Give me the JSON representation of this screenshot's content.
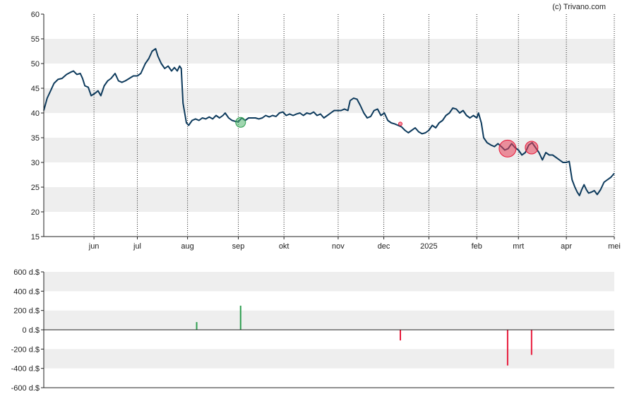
{
  "credit": "(c) Trivano.com",
  "colors": {
    "price_line": "#0d3a5c",
    "band": "#eeeeee",
    "buy": "#2e9e4f",
    "sell": "#e8193a",
    "buy_bubble": "rgba(80,180,110,0.55)",
    "sell_bubble": "rgba(232,64,88,0.55)"
  },
  "chart_data": [
    {
      "type": "line",
      "ylim": [
        15,
        60
      ],
      "y_ticks": [
        "15",
        "20",
        "25",
        "30",
        "35",
        "40",
        "45",
        "50",
        "55",
        "60"
      ],
      "x_ticks": [
        {
          "label": "jun",
          "t": 0.088
        },
        {
          "label": "jul",
          "t": 0.164
        },
        {
          "label": "aug",
          "t": 0.252
        },
        {
          "label": "sep",
          "t": 0.341
        },
        {
          "label": "okt",
          "t": 0.421
        },
        {
          "label": "nov",
          "t": 0.516
        },
        {
          "label": "dec",
          "t": 0.596
        },
        {
          "label": "2025",
          "t": 0.675
        },
        {
          "label": "feb",
          "t": 0.759
        },
        {
          "label": "mrt",
          "t": 0.832
        },
        {
          "label": "apr",
          "t": 0.916
        },
        {
          "label": "mei",
          "t": 1.0
        }
      ],
      "series": [
        {
          "points": [
            [
              0.0,
              40.5
            ],
            [
              0.006,
              43
            ],
            [
              0.012,
              44.5
            ],
            [
              0.018,
              46
            ],
            [
              0.025,
              46.8
            ],
            [
              0.032,
              47
            ],
            [
              0.04,
              47.8
            ],
            [
              0.048,
              48.3
            ],
            [
              0.052,
              48.5
            ],
            [
              0.058,
              47.8
            ],
            [
              0.064,
              48
            ],
            [
              0.068,
              47
            ],
            [
              0.072,
              45.5
            ],
            [
              0.078,
              45.2
            ],
            [
              0.083,
              43.5
            ],
            [
              0.09,
              44
            ],
            [
              0.095,
              44.5
            ],
            [
              0.1,
              43.5
            ],
            [
              0.106,
              45.5
            ],
            [
              0.112,
              46.5
            ],
            [
              0.118,
              47
            ],
            [
              0.125,
              48
            ],
            [
              0.131,
              46.5
            ],
            [
              0.137,
              46.2
            ],
            [
              0.143,
              46.5
            ],
            [
              0.15,
              47
            ],
            [
              0.157,
              47.5
            ],
            [
              0.164,
              47.5
            ],
            [
              0.17,
              48
            ],
            [
              0.178,
              50
            ],
            [
              0.184,
              51
            ],
            [
              0.19,
              52.5
            ],
            [
              0.196,
              53
            ],
            [
              0.2,
              51.5
            ],
            [
              0.206,
              50
            ],
            [
              0.212,
              49
            ],
            [
              0.218,
              49.5
            ],
            [
              0.224,
              48.5
            ],
            [
              0.229,
              49.2
            ],
            [
              0.234,
              48.5
            ],
            [
              0.238,
              49.5
            ],
            [
              0.241,
              49
            ],
            [
              0.244,
              42
            ],
            [
              0.25,
              38
            ],
            [
              0.254,
              37.5
            ],
            [
              0.26,
              38.5
            ],
            [
              0.266,
              38.8
            ],
            [
              0.272,
              38.5
            ],
            [
              0.278,
              39
            ],
            [
              0.284,
              38.8
            ],
            [
              0.29,
              39.2
            ],
            [
              0.296,
              38.8
            ],
            [
              0.302,
              39.5
            ],
            [
              0.308,
              39
            ],
            [
              0.314,
              39.5
            ],
            [
              0.318,
              40
            ],
            [
              0.324,
              39
            ],
            [
              0.33,
              38.5
            ],
            [
              0.336,
              38.3
            ],
            [
              0.341,
              38.2
            ],
            [
              0.347,
              39
            ],
            [
              0.353,
              38.5
            ],
            [
              0.359,
              39
            ],
            [
              0.365,
              39
            ],
            [
              0.371,
              39
            ],
            [
              0.377,
              38.8
            ],
            [
              0.383,
              39
            ],
            [
              0.389,
              39.5
            ],
            [
              0.395,
              39.2
            ],
            [
              0.401,
              39.5
            ],
            [
              0.407,
              39.3
            ],
            [
              0.413,
              40
            ],
            [
              0.419,
              40.2
            ],
            [
              0.425,
              39.5
            ],
            [
              0.431,
              39.8
            ],
            [
              0.437,
              39.5
            ],
            [
              0.443,
              39.8
            ],
            [
              0.449,
              40
            ],
            [
              0.455,
              39.5
            ],
            [
              0.461,
              40
            ],
            [
              0.467,
              39.8
            ],
            [
              0.473,
              40.2
            ],
            [
              0.479,
              39.5
            ],
            [
              0.485,
              39.8
            ],
            [
              0.491,
              39
            ],
            [
              0.497,
              39.5
            ],
            [
              0.503,
              40
            ],
            [
              0.509,
              40.5
            ],
            [
              0.515,
              40.5
            ],
            [
              0.521,
              40.5
            ],
            [
              0.527,
              40.8
            ],
            [
              0.533,
              40.5
            ],
            [
              0.537,
              42.5
            ],
            [
              0.543,
              43
            ],
            [
              0.549,
              42.8
            ],
            [
              0.555,
              41.5
            ],
            [
              0.561,
              40
            ],
            [
              0.567,
              39
            ],
            [
              0.573,
              39.3
            ],
            [
              0.579,
              40.5
            ],
            [
              0.585,
              40.8
            ],
            [
              0.591,
              39.5
            ],
            [
              0.597,
              40
            ],
            [
              0.603,
              38.5
            ],
            [
              0.609,
              38
            ],
            [
              0.615,
              37.8
            ],
            [
              0.621,
              37.5
            ],
            [
              0.627,
              37.2
            ],
            [
              0.633,
              36.5
            ],
            [
              0.639,
              36
            ],
            [
              0.645,
              36.5
            ],
            [
              0.651,
              37
            ],
            [
              0.657,
              36.2
            ],
            [
              0.663,
              35.8
            ],
            [
              0.669,
              36
            ],
            [
              0.675,
              36.5
            ],
            [
              0.681,
              37.5
            ],
            [
              0.687,
              37
            ],
            [
              0.693,
              38
            ],
            [
              0.699,
              38.5
            ],
            [
              0.705,
              39.5
            ],
            [
              0.711,
              40
            ],
            [
              0.717,
              41
            ],
            [
              0.723,
              40.8
            ],
            [
              0.729,
              40
            ],
            [
              0.735,
              40.5
            ],
            [
              0.741,
              39.5
            ],
            [
              0.747,
              39
            ],
            [
              0.753,
              39.5
            ],
            [
              0.759,
              39
            ],
            [
              0.762,
              40
            ],
            [
              0.767,
              38
            ],
            [
              0.771,
              35
            ],
            [
              0.777,
              34
            ],
            [
              0.784,
              33.5
            ],
            [
              0.79,
              33.2
            ],
            [
              0.796,
              33.8
            ],
            [
              0.802,
              33.2
            ],
            [
              0.808,
              32.5
            ],
            [
              0.814,
              32.8
            ],
            [
              0.82,
              33.8
            ],
            [
              0.826,
              33
            ],
            [
              0.832,
              32.5
            ],
            [
              0.838,
              31.5
            ],
            [
              0.844,
              32
            ],
            [
              0.85,
              33.5
            ],
            [
              0.856,
              34
            ],
            [
              0.862,
              33
            ],
            [
              0.868,
              32
            ],
            [
              0.874,
              30.5
            ],
            [
              0.88,
              32
            ],
            [
              0.886,
              31.5
            ],
            [
              0.892,
              31.5
            ],
            [
              0.898,
              31
            ],
            [
              0.904,
              30.5
            ],
            [
              0.91,
              30
            ],
            [
              0.916,
              30
            ],
            [
              0.921,
              30.2
            ],
            [
              0.926,
              26.5
            ],
            [
              0.931,
              25
            ],
            [
              0.935,
              24
            ],
            [
              0.939,
              23.3
            ],
            [
              0.943,
              24.5
            ],
            [
              0.947,
              25.5
            ],
            [
              0.951,
              24.5
            ],
            [
              0.955,
              23.8
            ],
            [
              0.96,
              24
            ],
            [
              0.965,
              24.3
            ],
            [
              0.97,
              23.5
            ],
            [
              0.976,
              24.5
            ],
            [
              0.982,
              26
            ],
            [
              0.988,
              26.5
            ],
            [
              0.994,
              27
            ],
            [
              1.0,
              27.8
            ]
          ]
        }
      ],
      "markers": [
        {
          "t": 0.345,
          "value": 38.1,
          "kind": "buy",
          "size": 7
        },
        {
          "t": 0.625,
          "value": 37.8,
          "kind": "sell",
          "size": 2.5
        },
        {
          "t": 0.813,
          "value": 32.8,
          "kind": "sell",
          "size": 12
        },
        {
          "t": 0.855,
          "value": 33.0,
          "kind": "sell",
          "size": 9
        }
      ]
    },
    {
      "type": "bar",
      "ylim": [
        -600,
        600
      ],
      "y_ticks": [
        "600 d.$",
        "400 d.$",
        "200 d.$",
        "0 d.$",
        "-200 d.$",
        "-400 d.$",
        "-600 d.$"
      ],
      "bars": [
        {
          "t": 0.268,
          "value": 80,
          "kind": "buy"
        },
        {
          "t": 0.345,
          "value": 250,
          "kind": "buy"
        },
        {
          "t": 0.625,
          "value": -110,
          "kind": "sell"
        },
        {
          "t": 0.813,
          "value": -370,
          "kind": "sell"
        },
        {
          "t": 0.855,
          "value": -260,
          "kind": "sell"
        }
      ]
    }
  ]
}
